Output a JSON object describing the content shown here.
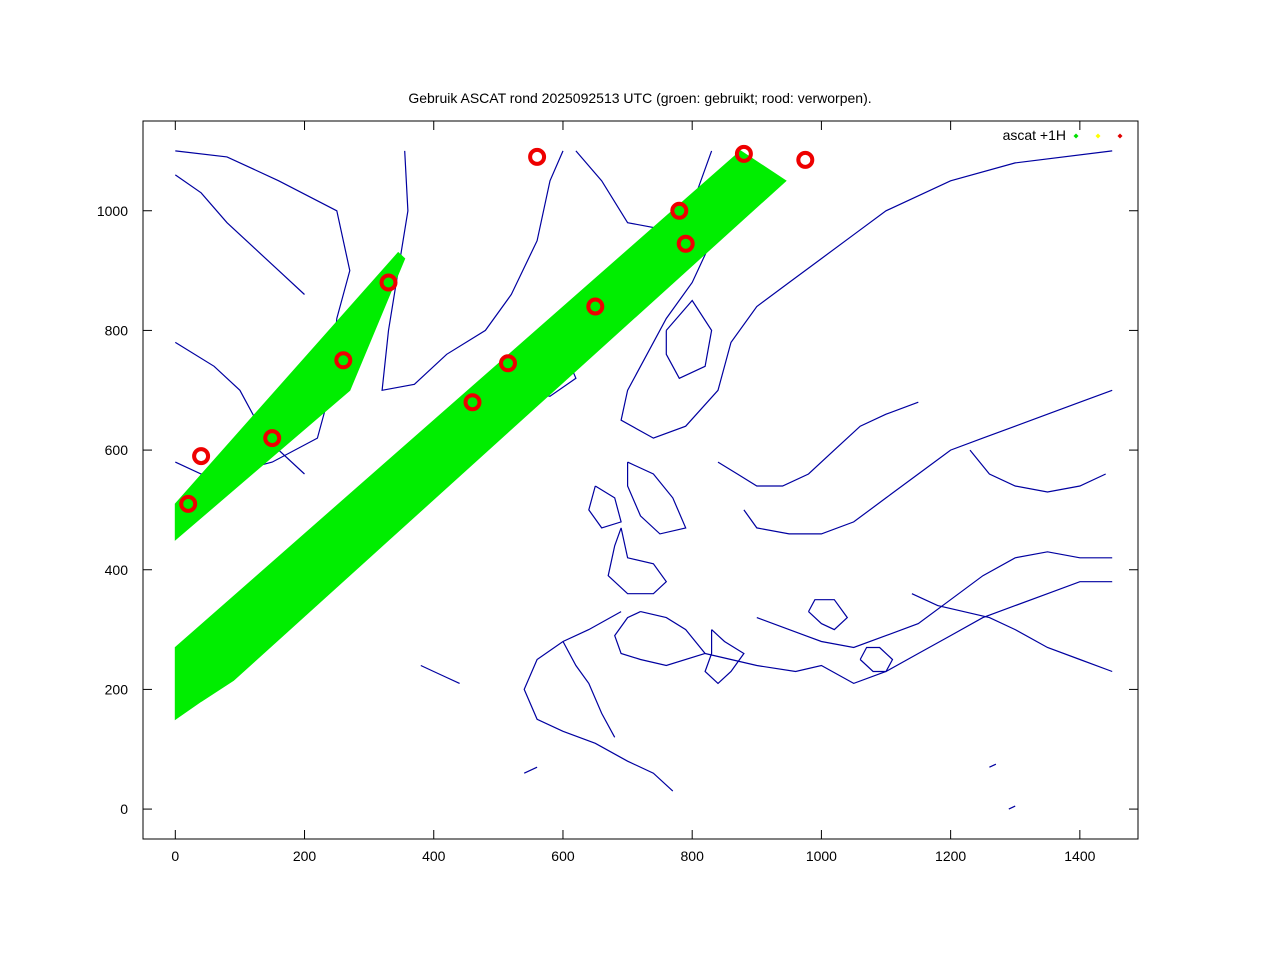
{
  "chart_data": {
    "type": "scatter",
    "title": "Gebruik ASCAT rond 2025092513 UTC (groen: gebruikt; rood: verworpen).",
    "xlabel": "",
    "ylabel": "",
    "xlim": [
      -50,
      1490
    ],
    "ylim": [
      -50,
      1150
    ],
    "xticks": [
      0,
      200,
      400,
      600,
      800,
      1000,
      1200,
      1400
    ],
    "yticks": [
      0,
      200,
      400,
      600,
      800,
      1000
    ],
    "legend": {
      "position": "top-right",
      "label": "ascat +1H",
      "markers": [
        {
          "color": "#00e000"
        },
        {
          "color": "#ffff00"
        },
        {
          "color": "#e00000"
        }
      ]
    },
    "colors": {
      "used": "#00ee00",
      "rejected": "#ee0000",
      "coastline": "#0000a0"
    },
    "series": [
      {
        "name": "",
        "color": "#00ee00",
        "swaths": [
          {
            "points": [
              [
                0,
                150
              ],
              [
                0,
                270
              ],
              [
                875,
                1100
              ],
              [
                945,
                1050
              ],
              [
                90,
                215
              ],
              [
                40,
                180
              ]
            ]
          },
          {
            "points": [
              [
                0,
                450
              ],
              [
                0,
                510
              ],
              [
                345,
                930
              ],
              [
                355,
                920
              ],
              [
                270,
                700
              ]
            ]
          }
        ]
      },
      {
        "name": "",
        "color": "#ee0000",
        "clusters": [
          {
            "x": 20,
            "y": 510
          },
          {
            "x": 40,
            "y": 590
          },
          {
            "x": 150,
            "y": 620
          },
          {
            "x": 260,
            "y": 750
          },
          {
            "x": 330,
            "y": 880
          },
          {
            "x": 460,
            "y": 680
          },
          {
            "x": 515,
            "y": 745
          },
          {
            "x": 560,
            "y": 1090
          },
          {
            "x": 650,
            "y": 840
          },
          {
            "x": 780,
            "y": 1000
          },
          {
            "x": 790,
            "y": 945
          },
          {
            "x": 880,
            "y": 1095
          },
          {
            "x": 975,
            "y": 1085
          }
        ]
      }
    ],
    "coastlines": [
      [
        [
          0,
          1100
        ],
        [
          80,
          1090
        ],
        [
          160,
          1050
        ],
        [
          250,
          1000
        ],
        [
          270,
          900
        ],
        [
          250,
          820
        ],
        [
          240,
          700
        ],
        [
          220,
          620
        ],
        [
          150,
          580
        ],
        [
          80,
          560
        ],
        [
          40,
          560
        ],
        [
          0,
          580
        ]
      ],
      [
        [
          355,
          1100
        ],
        [
          360,
          1000
        ],
        [
          345,
          900
        ],
        [
          330,
          800
        ],
        [
          320,
          700
        ],
        [
          370,
          710
        ],
        [
          420,
          760
        ],
        [
          480,
          800
        ],
        [
          520,
          860
        ],
        [
          560,
          950
        ],
        [
          580,
          1050
        ],
        [
          600,
          1100
        ]
      ],
      [
        [
          560,
          780
        ],
        [
          510,
          750
        ],
        [
          520,
          700
        ],
        [
          580,
          690
        ],
        [
          620,
          720
        ],
        [
          600,
          770
        ],
        [
          560,
          780
        ]
      ],
      [
        [
          620,
          1100
        ],
        [
          660,
          1050
        ],
        [
          700,
          980
        ],
        [
          750,
          970
        ],
        [
          800,
          1010
        ],
        [
          830,
          1100
        ]
      ],
      [
        [
          850,
          1060
        ],
        [
          830,
          950
        ],
        [
          800,
          880
        ],
        [
          760,
          820
        ],
        [
          730,
          760
        ],
        [
          700,
          700
        ],
        [
          690,
          650
        ],
        [
          740,
          620
        ],
        [
          790,
          640
        ],
        [
          840,
          700
        ],
        [
          860,
          780
        ],
        [
          900,
          840
        ],
        [
          950,
          880
        ],
        [
          1000,
          920
        ],
        [
          1050,
          960
        ],
        [
          1100,
          1000
        ],
        [
          1200,
          1050
        ],
        [
          1300,
          1080
        ],
        [
          1450,
          1100
        ]
      ],
      [
        [
          760,
          800
        ],
        [
          800,
          850
        ],
        [
          830,
          800
        ],
        [
          820,
          740
        ],
        [
          780,
          720
        ],
        [
          760,
          760
        ],
        [
          760,
          800
        ]
      ],
      [
        [
          700,
          580
        ],
        [
          740,
          560
        ],
        [
          770,
          520
        ],
        [
          790,
          470
        ],
        [
          750,
          460
        ],
        [
          720,
          490
        ],
        [
          700,
          540
        ],
        [
          700,
          580
        ]
      ],
      [
        [
          690,
          470
        ],
        [
          700,
          420
        ],
        [
          740,
          410
        ],
        [
          760,
          380
        ],
        [
          740,
          360
        ],
        [
          700,
          360
        ],
        [
          670,
          390
        ],
        [
          680,
          440
        ],
        [
          690,
          470
        ]
      ],
      [
        [
          650,
          540
        ],
        [
          640,
          500
        ],
        [
          660,
          470
        ],
        [
          690,
          480
        ],
        [
          680,
          520
        ],
        [
          650,
          540
        ]
      ],
      [
        [
          720,
          330
        ],
        [
          760,
          320
        ],
        [
          790,
          300
        ],
        [
          820,
          260
        ],
        [
          760,
          240
        ],
        [
          720,
          250
        ],
        [
          690,
          260
        ],
        [
          680,
          290
        ],
        [
          700,
          320
        ],
        [
          720,
          330
        ]
      ],
      [
        [
          690,
          330
        ],
        [
          640,
          300
        ],
        [
          600,
          280
        ],
        [
          560,
          250
        ],
        [
          540,
          200
        ],
        [
          560,
          150
        ],
        [
          600,
          130
        ],
        [
          650,
          110
        ],
        [
          700,
          80
        ],
        [
          740,
          60
        ],
        [
          770,
          30
        ]
      ],
      [
        [
          600,
          280
        ],
        [
          620,
          240
        ],
        [
          640,
          210
        ],
        [
          660,
          160
        ],
        [
          680,
          120
        ]
      ],
      [
        [
          820,
          260
        ],
        [
          860,
          250
        ],
        [
          900,
          240
        ],
        [
          960,
          230
        ],
        [
          1000,
          240
        ],
        [
          1050,
          210
        ],
        [
          1100,
          230
        ],
        [
          1150,
          260
        ],
        [
          1200,
          290
        ],
        [
          1250,
          320
        ],
        [
          1300,
          340
        ],
        [
          1350,
          360
        ],
        [
          1400,
          380
        ],
        [
          1450,
          380
        ]
      ],
      [
        [
          830,
          300
        ],
        [
          850,
          280
        ],
        [
          880,
          260
        ],
        [
          860,
          230
        ],
        [
          840,
          210
        ],
        [
          820,
          230
        ],
        [
          830,
          260
        ],
        [
          830,
          300
        ]
      ],
      [
        [
          900,
          320
        ],
        [
          950,
          300
        ],
        [
          1000,
          280
        ],
        [
          1050,
          270
        ],
        [
          1100,
          290
        ],
        [
          1150,
          310
        ],
        [
          1200,
          350
        ],
        [
          1250,
          390
        ],
        [
          1300,
          420
        ],
        [
          1350,
          430
        ],
        [
          1400,
          420
        ],
        [
          1450,
          420
        ]
      ],
      [
        [
          880,
          500
        ],
        [
          900,
          470
        ],
        [
          950,
          460
        ],
        [
          1000,
          460
        ],
        [
          1050,
          480
        ],
        [
          1100,
          520
        ],
        [
          1150,
          560
        ],
        [
          1200,
          600
        ],
        [
          1250,
          620
        ],
        [
          1300,
          640
        ],
        [
          1350,
          660
        ],
        [
          1400,
          680
        ],
        [
          1450,
          700
        ]
      ],
      [
        [
          840,
          580
        ],
        [
          870,
          560
        ],
        [
          900,
          540
        ],
        [
          940,
          540
        ],
        [
          980,
          560
        ],
        [
          1020,
          600
        ],
        [
          1060,
          640
        ],
        [
          1100,
          660
        ],
        [
          1150,
          680
        ]
      ],
      [
        [
          1230,
          600
        ],
        [
          1260,
          560
        ],
        [
          1300,
          540
        ],
        [
          1350,
          530
        ],
        [
          1400,
          540
        ],
        [
          1440,
          560
        ]
      ],
      [
        [
          1140,
          360
        ],
        [
          1180,
          340
        ],
        [
          1220,
          330
        ],
        [
          1260,
          320
        ],
        [
          1300,
          300
        ],
        [
          1350,
          270
        ],
        [
          1400,
          250
        ],
        [
          1450,
          230
        ]
      ],
      [
        [
          980,
          330
        ],
        [
          1000,
          310
        ],
        [
          1020,
          300
        ],
        [
          1040,
          320
        ],
        [
          1020,
          350
        ],
        [
          990,
          350
        ],
        [
          980,
          330
        ]
      ],
      [
        [
          1060,
          250
        ],
        [
          1080,
          230
        ],
        [
          1100,
          230
        ],
        [
          1110,
          250
        ],
        [
          1090,
          270
        ],
        [
          1070,
          270
        ],
        [
          1060,
          250
        ]
      ],
      [
        [
          0,
          780
        ],
        [
          60,
          740
        ],
        [
          100,
          700
        ],
        [
          130,
          640
        ],
        [
          160,
          600
        ],
        [
          200,
          560
        ]
      ],
      [
        [
          0,
          1060
        ],
        [
          40,
          1030
        ],
        [
          80,
          980
        ],
        [
          120,
          940
        ],
        [
          160,
          900
        ],
        [
          200,
          860
        ]
      ],
      [
        [
          380,
          240
        ],
        [
          400,
          230
        ],
        [
          420,
          220
        ],
        [
          440,
          210
        ]
      ],
      [
        [
          540,
          60
        ],
        [
          560,
          70
        ]
      ],
      [
        [
          1290,
          0
        ],
        [
          1300,
          5
        ]
      ],
      [
        [
          1260,
          70
        ],
        [
          1270,
          75
        ]
      ]
    ]
  }
}
